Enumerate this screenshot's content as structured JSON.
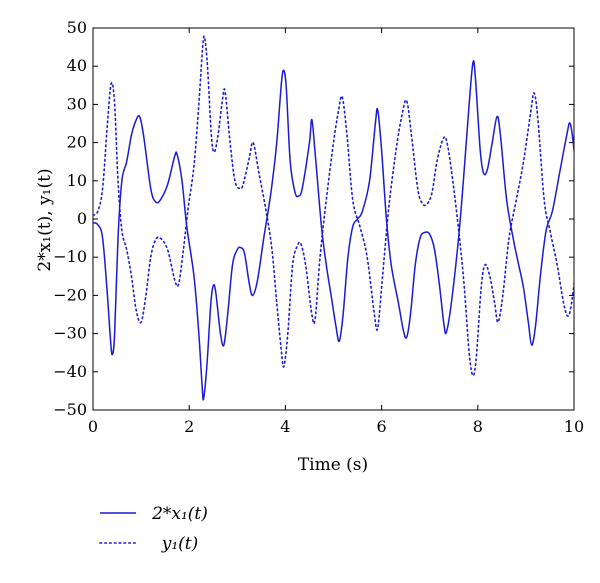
{
  "chart_data": {
    "type": "line",
    "xlabel": "Time (s)",
    "ylabel": "2*x₁(t), y₁(t)",
    "xlim": [
      0,
      10
    ],
    "ylim": [
      -50,
      50
    ],
    "xticks": [
      0,
      2,
      4,
      6,
      8,
      10
    ],
    "yticks": [
      -50,
      -40,
      -30,
      -20,
      -10,
      0,
      10,
      20,
      30,
      40,
      50
    ],
    "grid": false,
    "legend_placement": "bottom-left, below plot",
    "series": [
      {
        "name": "2*x₁(t)",
        "style": "solid",
        "color": "#1a1ad6",
        "points": [
          [
            0,
            -1
          ],
          [
            0.1,
            -1.5
          ],
          [
            0.2,
            -5
          ],
          [
            0.3,
            -20
          ],
          [
            0.36,
            -31
          ],
          [
            0.4,
            -35.5
          ],
          [
            0.45,
            -30
          ],
          [
            0.52,
            -5
          ],
          [
            0.6,
            10
          ],
          [
            0.7,
            15
          ],
          [
            0.8,
            22
          ],
          [
            0.9,
            26
          ],
          [
            0.97,
            26.8
          ],
          [
            1.05,
            22
          ],
          [
            1.2,
            8
          ],
          [
            1.3,
            4.5
          ],
          [
            1.4,
            5
          ],
          [
            1.55,
            9
          ],
          [
            1.7,
            16.5
          ],
          [
            1.75,
            16.8
          ],
          [
            1.85,
            10
          ],
          [
            1.95,
            -2
          ],
          [
            2.1,
            -15
          ],
          [
            2.2,
            -30
          ],
          [
            2.27,
            -44
          ],
          [
            2.3,
            -47
          ],
          [
            2.37,
            -38
          ],
          [
            2.45,
            -22
          ],
          [
            2.5,
            -17.5
          ],
          [
            2.55,
            -19
          ],
          [
            2.65,
            -30
          ],
          [
            2.72,
            -33
          ],
          [
            2.8,
            -25
          ],
          [
            2.9,
            -12
          ],
          [
            3.0,
            -8
          ],
          [
            3.07,
            -7.5
          ],
          [
            3.15,
            -9
          ],
          [
            3.25,
            -17
          ],
          [
            3.32,
            -20
          ],
          [
            3.42,
            -16
          ],
          [
            3.55,
            -5
          ],
          [
            3.7,
            7
          ],
          [
            3.82,
            20
          ],
          [
            3.92,
            36
          ],
          [
            3.97,
            38.8
          ],
          [
            4.02,
            34
          ],
          [
            4.1,
            15
          ],
          [
            4.2,
            7
          ],
          [
            4.27,
            6
          ],
          [
            4.35,
            8
          ],
          [
            4.5,
            20
          ],
          [
            4.55,
            26
          ],
          [
            4.62,
            17
          ],
          [
            4.75,
            -2
          ],
          [
            4.85,
            -12
          ],
          [
            4.95,
            -20
          ],
          [
            5.05,
            -28
          ],
          [
            5.12,
            -32
          ],
          [
            5.2,
            -25
          ],
          [
            5.3,
            -10
          ],
          [
            5.4,
            -2
          ],
          [
            5.5,
            0
          ],
          [
            5.6,
            2
          ],
          [
            5.75,
            10
          ],
          [
            5.87,
            25
          ],
          [
            5.92,
            28.5
          ],
          [
            6.0,
            18
          ],
          [
            6.1,
            0
          ],
          [
            6.2,
            -12
          ],
          [
            6.35,
            -22
          ],
          [
            6.45,
            -29
          ],
          [
            6.52,
            -31
          ],
          [
            6.6,
            -25
          ],
          [
            6.7,
            -12
          ],
          [
            6.8,
            -5
          ],
          [
            6.9,
            -3.5
          ],
          [
            7.0,
            -4
          ],
          [
            7.1,
            -8
          ],
          [
            7.2,
            -17
          ],
          [
            7.3,
            -28
          ],
          [
            7.35,
            -29.5
          ],
          [
            7.45,
            -22
          ],
          [
            7.6,
            -5
          ],
          [
            7.7,
            10
          ],
          [
            7.82,
            30
          ],
          [
            7.9,
            41
          ],
          [
            7.95,
            37
          ],
          [
            8.05,
            18
          ],
          [
            8.12,
            12
          ],
          [
            8.2,
            13
          ],
          [
            8.3,
            20
          ],
          [
            8.4,
            26.8
          ],
          [
            8.47,
            22
          ],
          [
            8.6,
            5
          ],
          [
            8.75,
            -6
          ],
          [
            8.85,
            -12
          ],
          [
            8.95,
            -18
          ],
          [
            9.05,
            -27
          ],
          [
            9.12,
            -33
          ],
          [
            9.2,
            -28
          ],
          [
            9.3,
            -15
          ],
          [
            9.42,
            -3
          ],
          [
            9.55,
            2
          ],
          [
            9.7,
            12
          ],
          [
            9.85,
            22
          ],
          [
            9.92,
            25
          ],
          [
            10.0,
            18
          ],
          [
            10.02,
            10
          ]
        ]
      },
      {
        "name": "y₁(t)",
        "style": "dotted",
        "color": "#1a1ad6",
        "points": [
          [
            0,
            1
          ],
          [
            0.1,
            2
          ],
          [
            0.2,
            8
          ],
          [
            0.3,
            25
          ],
          [
            0.38,
            35.5
          ],
          [
            0.45,
            30
          ],
          [
            0.52,
            10
          ],
          [
            0.6,
            -3
          ],
          [
            0.7,
            -8
          ],
          [
            0.8,
            -15
          ],
          [
            0.9,
            -24
          ],
          [
            1.0,
            -27
          ],
          [
            1.1,
            -20
          ],
          [
            1.2,
            -10
          ],
          [
            1.3,
            -5.5
          ],
          [
            1.4,
            -5
          ],
          [
            1.55,
            -8
          ],
          [
            1.7,
            -16
          ],
          [
            1.78,
            -17
          ],
          [
            1.88,
            -8
          ],
          [
            1.98,
            3
          ],
          [
            2.1,
            14
          ],
          [
            2.2,
            30
          ],
          [
            2.28,
            45
          ],
          [
            2.32,
            47.5
          ],
          [
            2.38,
            40
          ],
          [
            2.46,
            22
          ],
          [
            2.52,
            17.5
          ],
          [
            2.6,
            22
          ],
          [
            2.7,
            32
          ],
          [
            2.75,
            33
          ],
          [
            2.85,
            20
          ],
          [
            2.95,
            10
          ],
          [
            3.05,
            8
          ],
          [
            3.12,
            9
          ],
          [
            3.25,
            16
          ],
          [
            3.33,
            20
          ],
          [
            3.45,
            12
          ],
          [
            3.6,
            2
          ],
          [
            3.72,
            -8
          ],
          [
            3.82,
            -22
          ],
          [
            3.92,
            -35
          ],
          [
            3.97,
            -38.5
          ],
          [
            4.05,
            -30
          ],
          [
            4.15,
            -12
          ],
          [
            4.25,
            -7
          ],
          [
            4.32,
            -6.5
          ],
          [
            4.42,
            -12
          ],
          [
            4.55,
            -25
          ],
          [
            4.62,
            -26
          ],
          [
            4.72,
            -10
          ],
          [
            4.85,
            5
          ],
          [
            5.0,
            20
          ],
          [
            5.1,
            28
          ],
          [
            5.18,
            32
          ],
          [
            5.28,
            22
          ],
          [
            5.4,
            5
          ],
          [
            5.55,
            -2
          ],
          [
            5.7,
            -10
          ],
          [
            5.85,
            -25
          ],
          [
            5.92,
            -28.5
          ],
          [
            6.02,
            -15
          ],
          [
            6.15,
            3
          ],
          [
            6.3,
            18
          ],
          [
            6.42,
            27
          ],
          [
            6.52,
            31
          ],
          [
            6.62,
            22
          ],
          [
            6.75,
            8
          ],
          [
            6.85,
            4
          ],
          [
            6.95,
            4
          ],
          [
            7.05,
            7
          ],
          [
            7.15,
            15
          ],
          [
            7.28,
            21
          ],
          [
            7.36,
            20
          ],
          [
            7.48,
            10
          ],
          [
            7.62,
            -5
          ],
          [
            7.72,
            -18
          ],
          [
            7.82,
            -35
          ],
          [
            7.9,
            -41
          ],
          [
            7.97,
            -36
          ],
          [
            8.07,
            -18
          ],
          [
            8.15,
            -12
          ],
          [
            8.25,
            -15
          ],
          [
            8.35,
            -22
          ],
          [
            8.42,
            -27
          ],
          [
            8.52,
            -20
          ],
          [
            8.65,
            -5
          ],
          [
            8.8,
            5
          ],
          [
            8.95,
            15
          ],
          [
            9.1,
            28
          ],
          [
            9.17,
            33
          ],
          [
            9.25,
            26
          ],
          [
            9.38,
            5
          ],
          [
            9.5,
            -3
          ],
          [
            9.65,
            -12
          ],
          [
            9.8,
            -23
          ],
          [
            9.9,
            -25
          ],
          [
            10.0,
            -17
          ],
          [
            10.02,
            -10
          ]
        ]
      }
    ]
  }
}
